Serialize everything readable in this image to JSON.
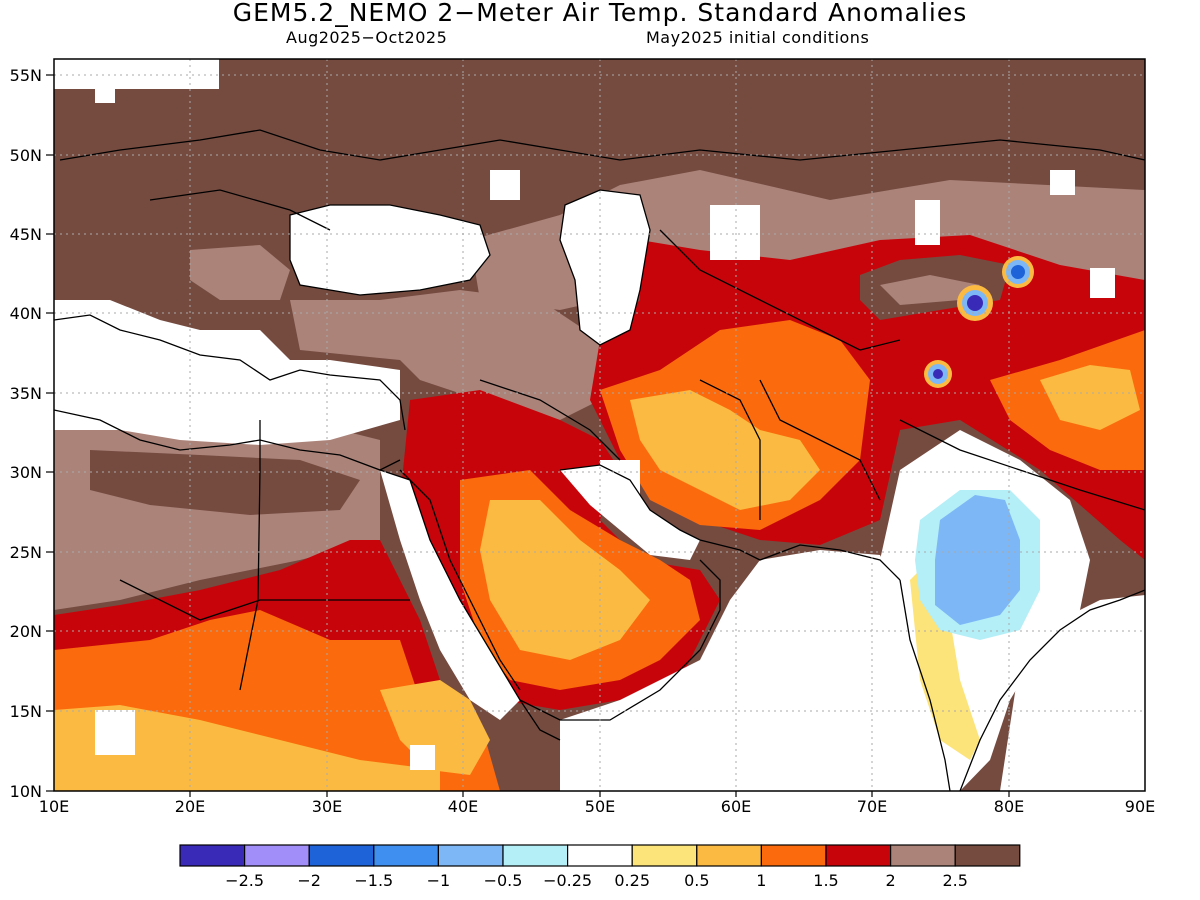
{
  "title": "GEM5.2_NEMO 2−Meter Air Temp. Standard Anomalies",
  "subtitle_left": "Aug2025−Oct2025",
  "subtitle_right": "May2025 initial conditions",
  "axes": {
    "lat_labels": [
      "55N",
      "50N",
      "45N",
      "40N",
      "35N",
      "30N",
      "25N",
      "20N",
      "15N",
      "10N"
    ],
    "lon_labels": [
      "10E",
      "20E",
      "30E",
      "40E",
      "50E",
      "60E",
      "70E",
      "80E",
      "90E"
    ],
    "lat_range": [
      10,
      56
    ],
    "lon_range": [
      10,
      90
    ]
  },
  "colors": {
    "anom_lt_m25": "#3a2ab8",
    "anom_m25_m2": "#a28ef8",
    "anom_m2_m15": "#1e63d8",
    "anom_m15_m1": "#3f8ff0",
    "anom_m1_m05": "#7db7f6",
    "anom_m05_m025": "#b4eef6",
    "neutral": "#ffffff",
    "anom_025_05": "#fce37a",
    "anom_05_1": "#fbba41",
    "anom_1_15": "#fb6a0c",
    "anom_15_2": "#c8040b",
    "anom_2_25": "#ab8379",
    "anom_gt_25": "#754b40",
    "coastline": "#000000"
  },
  "legend": {
    "colors": [
      "#3a2ab8",
      "#a28ef8",
      "#1e63d8",
      "#3f8ff0",
      "#7db7f6",
      "#b4eef6",
      "#ffffff",
      "#fce37a",
      "#fbba41",
      "#fb6a0c",
      "#c8040b",
      "#ab8379",
      "#754b40"
    ],
    "labels": [
      "−2.5",
      "−2",
      "−1.5",
      "−1",
      "−0.5",
      "−0.25",
      "0.25",
      "0.5",
      "1",
      "1.5",
      "2",
      "2.5"
    ]
  }
}
